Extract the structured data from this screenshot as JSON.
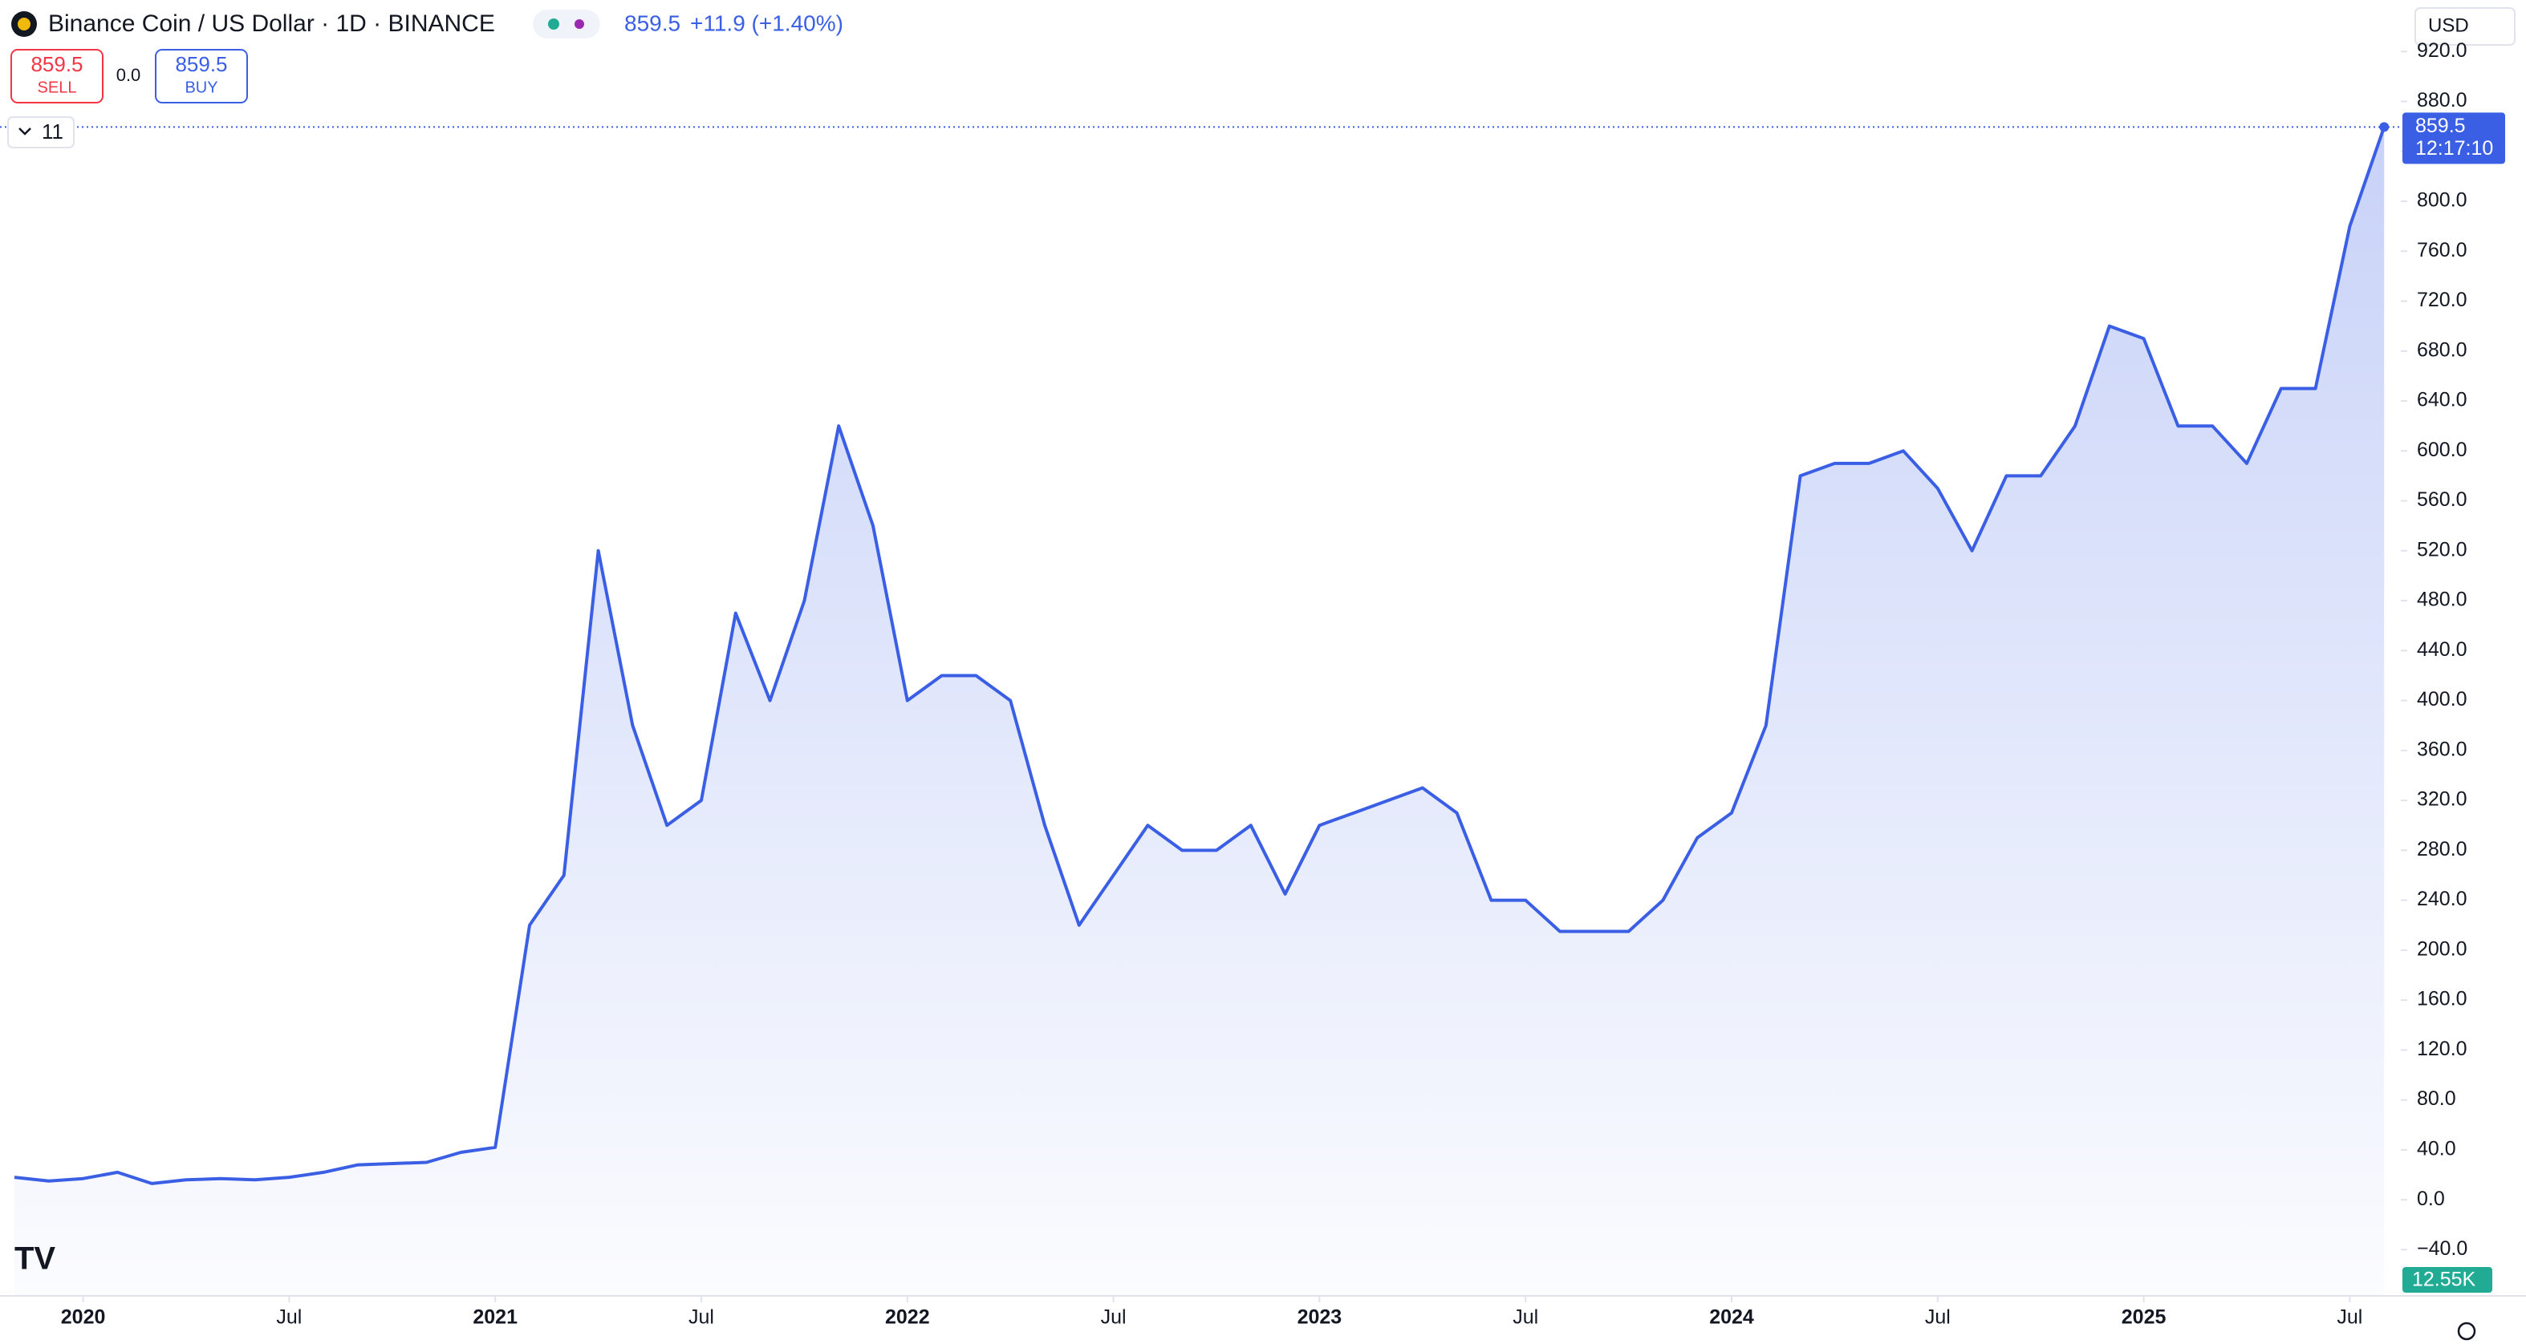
{
  "header": {
    "title": "Binance Coin / US Dollar · 1D · BINANCE",
    "price": "859.5",
    "change": "+11.9 (+1.40%)",
    "currency": "USD"
  },
  "trade": {
    "sell_price": "859.5",
    "sell": "SELL",
    "spread": "0.0",
    "buy_price": "859.5",
    "buy": "BUY"
  },
  "indicators": {
    "count": "11"
  },
  "last_price_label": {
    "price": "859.5",
    "countdown": "12:17:10"
  },
  "volume_label": "12.55K",
  "chart_data": {
    "type": "area",
    "color": "#3a5fe5",
    "categories": [
      "2019-11",
      "2019-12",
      "2020-01",
      "2020-02",
      "2020-03",
      "2020-04",
      "2020-05",
      "2020-06",
      "2020-07",
      "2020-08",
      "2020-09",
      "2020-10",
      "2020-11",
      "2020-12",
      "2021-01",
      "2021-02",
      "2021-03",
      "2021-04",
      "2021-05",
      "2021-06",
      "2021-07",
      "2021-08",
      "2021-09",
      "2021-10",
      "2021-11",
      "2021-12",
      "2022-01",
      "2022-02",
      "2022-03",
      "2022-04",
      "2022-05",
      "2022-06",
      "2022-07",
      "2022-08",
      "2022-09",
      "2022-10",
      "2022-11",
      "2022-12",
      "2023-01",
      "2023-02",
      "2023-03",
      "2023-04",
      "2023-05",
      "2023-06",
      "2023-07",
      "2023-08",
      "2023-09",
      "2023-10",
      "2023-11",
      "2023-12",
      "2024-01",
      "2024-02",
      "2024-03",
      "2024-04",
      "2024-05",
      "2024-06",
      "2024-07",
      "2024-08",
      "2024-09",
      "2024-10",
      "2024-11",
      "2024-12",
      "2025-01",
      "2025-02",
      "2025-03",
      "2025-04",
      "2025-05",
      "2025-06",
      "2025-07",
      "2025-08"
    ],
    "values": [
      18,
      15,
      17,
      22,
      13,
      16,
      17,
      16,
      18,
      22,
      28,
      29,
      30,
      38,
      42,
      220,
      260,
      520,
      380,
      300,
      320,
      470,
      400,
      480,
      620,
      540,
      400,
      420,
      420,
      400,
      300,
      220,
      260,
      300,
      280,
      280,
      300,
      245,
      300,
      310,
      320,
      330,
      310,
      240,
      240,
      215,
      215,
      215,
      240,
      290,
      310,
      380,
      580,
      590,
      590,
      600,
      570,
      520,
      580,
      580,
      620,
      700,
      690,
      620,
      620,
      590,
      650,
      650,
      780,
      859.5
    ],
    "ylim": [
      -77,
      933
    ],
    "yticks": [
      {
        "value": -40,
        "label": "−40.0"
      },
      {
        "value": 0,
        "label": "0.0"
      },
      {
        "value": 40,
        "label": "40.0"
      },
      {
        "value": 80,
        "label": "80.0"
      },
      {
        "value": 120,
        "label": "120.0"
      },
      {
        "value": 160,
        "label": "160.0"
      },
      {
        "value": 200,
        "label": "200.0"
      },
      {
        "value": 240,
        "label": "240.0"
      },
      {
        "value": 280,
        "label": "280.0"
      },
      {
        "value": 320,
        "label": "320.0"
      },
      {
        "value": 360,
        "label": "360.0"
      },
      {
        "value": 400,
        "label": "400.0"
      },
      {
        "value": 440,
        "label": "440.0"
      },
      {
        "value": 480,
        "label": "480.0"
      },
      {
        "value": 520,
        "label": "520.0"
      },
      {
        "value": 560,
        "label": "560.0"
      },
      {
        "value": 600,
        "label": "600.0"
      },
      {
        "value": 640,
        "label": "640.0"
      },
      {
        "value": 680,
        "label": "680.0"
      },
      {
        "value": 720,
        "label": "720.0"
      },
      {
        "value": 760,
        "label": "760.0"
      },
      {
        "value": 800,
        "label": "800.0"
      },
      {
        "value": 840,
        "label": "840.0"
      },
      {
        "value": 880,
        "label": "880.0"
      },
      {
        "value": 920,
        "label": "920.0"
      }
    ],
    "xticks": [
      {
        "value": "2020-01",
        "label": "2020"
      },
      {
        "value": "2020-07",
        "label": "Jul"
      },
      {
        "value": "2021-01",
        "label": "2021"
      },
      {
        "value": "2021-07",
        "label": "Jul"
      },
      {
        "value": "2022-01",
        "label": "2022"
      },
      {
        "value": "2022-07",
        "label": "Jul"
      },
      {
        "value": "2023-01",
        "label": "2023"
      },
      {
        "value": "2023-07",
        "label": "Jul"
      },
      {
        "value": "2024-01",
        "label": "2024"
      },
      {
        "value": "2024-07",
        "label": "Jul"
      },
      {
        "value": "2025-01",
        "label": "2025"
      },
      {
        "value": "2025-07",
        "label": "Jul"
      }
    ],
    "grid": false
  }
}
